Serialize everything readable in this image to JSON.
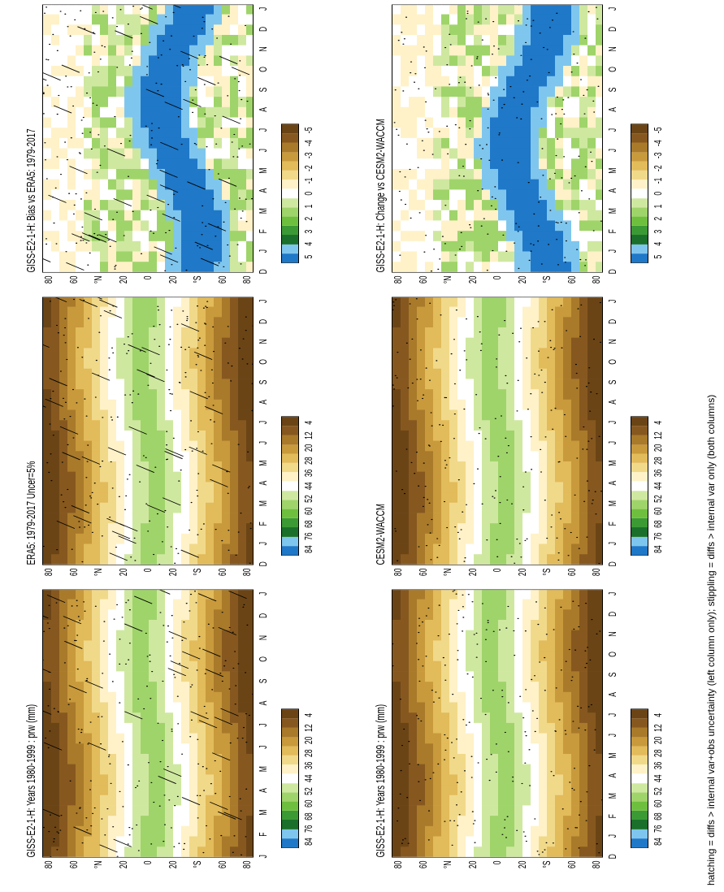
{
  "chart_data": [
    {
      "type": "heatmap",
      "title": "GISS-E2-1-H: Years 1980-1999 : prw (mm)",
      "variable": "prw (mm)",
      "x": [
        "J",
        "F",
        "M",
        "A",
        "M",
        "J",
        "J",
        "A",
        "S",
        "O",
        "N",
        "D",
        "J"
      ],
      "y_ticks": [
        "80",
        "60",
        "°N",
        "20",
        "0",
        "20",
        "°S",
        "60",
        "80"
      ],
      "colorbar": [
        "84",
        "76",
        "68",
        "60",
        "52",
        "44",
        "36",
        "28",
        "20",
        "12",
        "4"
      ],
      "annotations": "hatching and stippling"
    },
    {
      "type": "heatmap",
      "title": "GISS-E2-1-H: Years 1980-1999 : prw (mm)",
      "variable": "prw (mm)",
      "x": [
        "D",
        "J",
        "F",
        "M",
        "A",
        "M",
        "J",
        "J",
        "A",
        "S",
        "O",
        "N",
        "D",
        "J"
      ],
      "y_ticks": [
        "80",
        "60",
        "°N",
        "20",
        "0",
        "20",
        "°S",
        "60",
        "80"
      ],
      "colorbar": [
        "84",
        "76",
        "68",
        "60",
        "52",
        "44",
        "36",
        "28",
        "20",
        "12",
        "4"
      ],
      "annotations": "stippling"
    },
    {
      "type": "heatmap",
      "title": "ERA5: 1979-2017 Uncer=5%",
      "x": [
        "D",
        "J",
        "F",
        "M",
        "A",
        "M",
        "J",
        "J",
        "A",
        "S",
        "O",
        "N",
        "D",
        "J"
      ],
      "y_ticks": [
        "80",
        "60",
        "°N",
        "20",
        "0",
        "20",
        "°S",
        "60",
        "80"
      ],
      "colorbar": [
        "84",
        "76",
        "68",
        "60",
        "52",
        "44",
        "36",
        "28",
        "20",
        "12",
        "4"
      ],
      "annotations": "hatching and stippling"
    },
    {
      "type": "heatmap",
      "title": "CESM2-WACCM",
      "x": [
        "D",
        "J",
        "F",
        "M",
        "A",
        "M",
        "J",
        "J",
        "A",
        "S",
        "O",
        "N",
        "D",
        "J"
      ],
      "y_ticks": [
        "80",
        "60",
        "°N",
        "20",
        "0",
        "20",
        "°S",
        "60",
        "80"
      ],
      "colorbar": [
        "84",
        "76",
        "68",
        "60",
        "52",
        "44",
        "36",
        "28",
        "20",
        "12",
        "4"
      ],
      "annotations": "stippling"
    },
    {
      "type": "heatmap",
      "title": "GISS-E2-1-H: Bias vs ERA5: 1979-2017",
      "x": [
        "D",
        "J",
        "F",
        "M",
        "A",
        "M",
        "J",
        "J",
        "A",
        "S",
        "O",
        "N",
        "D",
        "J"
      ],
      "y_ticks": [
        "80",
        "60",
        "°N",
        "20",
        "0",
        "20",
        "°S",
        "60",
        "80"
      ],
      "colorbar": [
        "5",
        "4",
        "3",
        "2",
        "1",
        "0",
        "-1",
        "-2",
        "-3",
        "-4",
        "-5"
      ],
      "annotations": "hatching and stippling"
    },
    {
      "type": "heatmap",
      "title": "GISS-E2-1-H: Change vs CESM2-WACCM",
      "x": [
        "D",
        "J",
        "F",
        "M",
        "A",
        "M",
        "J",
        "J",
        "A",
        "S",
        "O",
        "N",
        "D",
        "J"
      ],
      "y_ticks": [
        "80",
        "60",
        "°N",
        "20",
        "0",
        "20",
        "°S",
        "60",
        "80"
      ],
      "colorbar": [
        "5",
        "4",
        "3",
        "2",
        "1",
        "0",
        "-1",
        "-2",
        "-3",
        "-4",
        "-5"
      ],
      "annotations": "stippling"
    }
  ],
  "footer": "hatching = diffs > internal var+obs uncertainty (left column only); stippling = diffs > internal var only (both columns)",
  "colors": {
    "abs_scale": [
      "#1f78c8",
      "#7fc6ee",
      "#1a6f2a",
      "#3c9a35",
      "#6fbf3f",
      "#9fd46a",
      "#cfe8a0",
      "#ffffff",
      "#fff2c8",
      "#f1d98a",
      "#e2bb5a",
      "#c89a3c",
      "#a97a2a",
      "#86581f",
      "#6b4416"
    ],
    "diff_scale": [
      "#1f78c8",
      "#7fc6ee",
      "#1a6f2a",
      "#3c9a35",
      "#6fbf3f",
      "#9fd46a",
      "#cfe8a0",
      "#ffffff",
      "#fff2c8",
      "#f1d98a",
      "#e2bb5a",
      "#c89a3c",
      "#a97a2a",
      "#86581f",
      "#6b4416"
    ]
  }
}
